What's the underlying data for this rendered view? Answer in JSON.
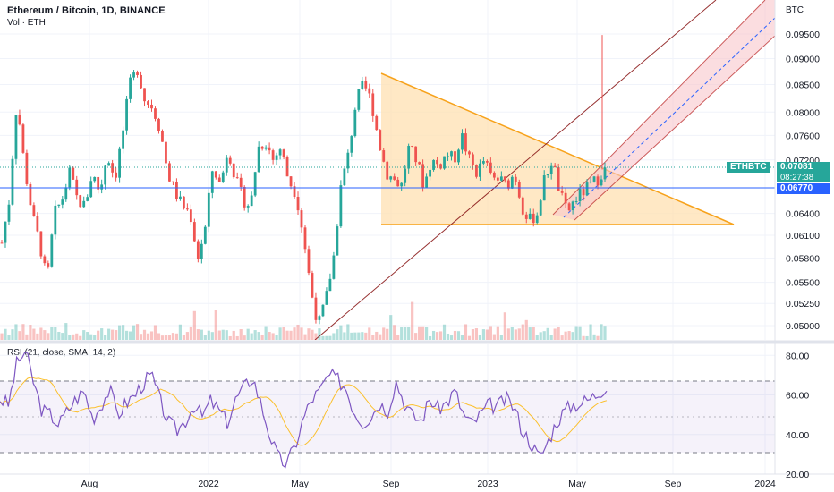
{
  "header": {
    "title": "Ethereum / Bitcoin, 1D, BINANCE",
    "volume_label": "Vol · ETH"
  },
  "rsi_label": "RSI (21, close, SMA, 14, 2)",
  "currency": "BTC",
  "price_tags": {
    "symbol": "ETHBTC",
    "last_price": "0.07081",
    "countdown": "08:27:38",
    "line_price": "0.06770"
  },
  "colors": {
    "up": "#26a69a",
    "down": "#ef5350",
    "triangle_fill": "#ffe0b2",
    "triangle_line": "#f7a21b",
    "channel_fill": "#f8c7cc",
    "channel_line": "#b71c1c",
    "channel_mid": "#2962ff",
    "horizontal_line": "#2962ff",
    "rsi_line": "#7e57c2",
    "rsi_ma": "#fbc02d"
  },
  "chart_data": [
    {
      "type": "candlestick",
      "title": "Ethereum / Bitcoin, 1D, BINANCE",
      "y_axis_ticks": [
        "0.09500",
        "0.09000",
        "0.08500",
        "0.08000",
        "0.07600",
        "0.07200",
        "0.06400",
        "0.06100",
        "0.05800",
        "0.05500",
        "0.05250",
        "0.05000"
      ],
      "x_axis_ticks": [
        "Aug",
        "2022",
        "May",
        "Sep",
        "2023",
        "May",
        "Sep",
        "2024"
      ],
      "last_price": 0.07081,
      "horizontal_line": 0.0677,
      "ohlc_path": [
        0.06,
        0.066,
        0.082,
        0.071,
        0.064,
        0.06,
        0.055,
        0.064,
        0.066,
        0.07,
        0.066,
        0.065,
        0.07,
        0.067,
        0.073,
        0.069,
        0.076,
        0.085,
        0.088,
        0.082,
        0.081,
        0.077,
        0.07,
        0.067,
        0.065,
        0.064,
        0.058,
        0.062,
        0.071,
        0.068,
        0.074,
        0.069,
        0.066,
        0.065,
        0.074,
        0.075,
        0.072,
        0.074,
        0.069,
        0.067,
        0.061,
        0.054,
        0.05,
        0.053,
        0.058,
        0.068,
        0.073,
        0.082,
        0.085,
        0.082,
        0.075,
        0.07,
        0.069,
        0.068,
        0.074,
        0.072,
        0.068,
        0.072,
        0.071,
        0.073,
        0.072,
        0.076,
        0.072,
        0.07,
        0.072,
        0.069,
        0.069,
        0.068,
        0.07,
        0.065,
        0.063,
        0.064,
        0.069,
        0.072,
        0.067,
        0.064,
        0.066,
        0.067,
        0.068,
        0.069,
        0.0708
      ]
    },
    {
      "type": "line",
      "title": "RSI (21, close, SMA, 14, 2)",
      "y_axis_ticks": [
        "80.00",
        "60.00",
        "40.00",
        "20.00"
      ],
      "ylim": [
        20,
        86
      ],
      "band": [
        30,
        70
      ],
      "rsi_path": [
        58,
        55,
        76,
        82,
        66,
        52,
        50,
        45,
        52,
        58,
        62,
        48,
        55,
        63,
        50,
        56,
        60,
        66,
        70,
        57,
        46,
        42,
        47,
        55,
        49,
        57,
        52,
        46,
        58,
        64,
        69,
        55,
        40,
        28,
        25,
        34,
        48,
        58,
        62,
        70,
        68,
        64,
        52,
        46,
        49,
        56,
        52,
        67,
        56,
        49,
        47,
        58,
        53,
        56,
        62,
        50,
        45,
        50,
        55,
        54,
        58,
        54,
        42,
        36,
        28,
        36,
        46,
        52,
        55,
        56,
        58,
        61,
        65
      ]
    }
  ]
}
